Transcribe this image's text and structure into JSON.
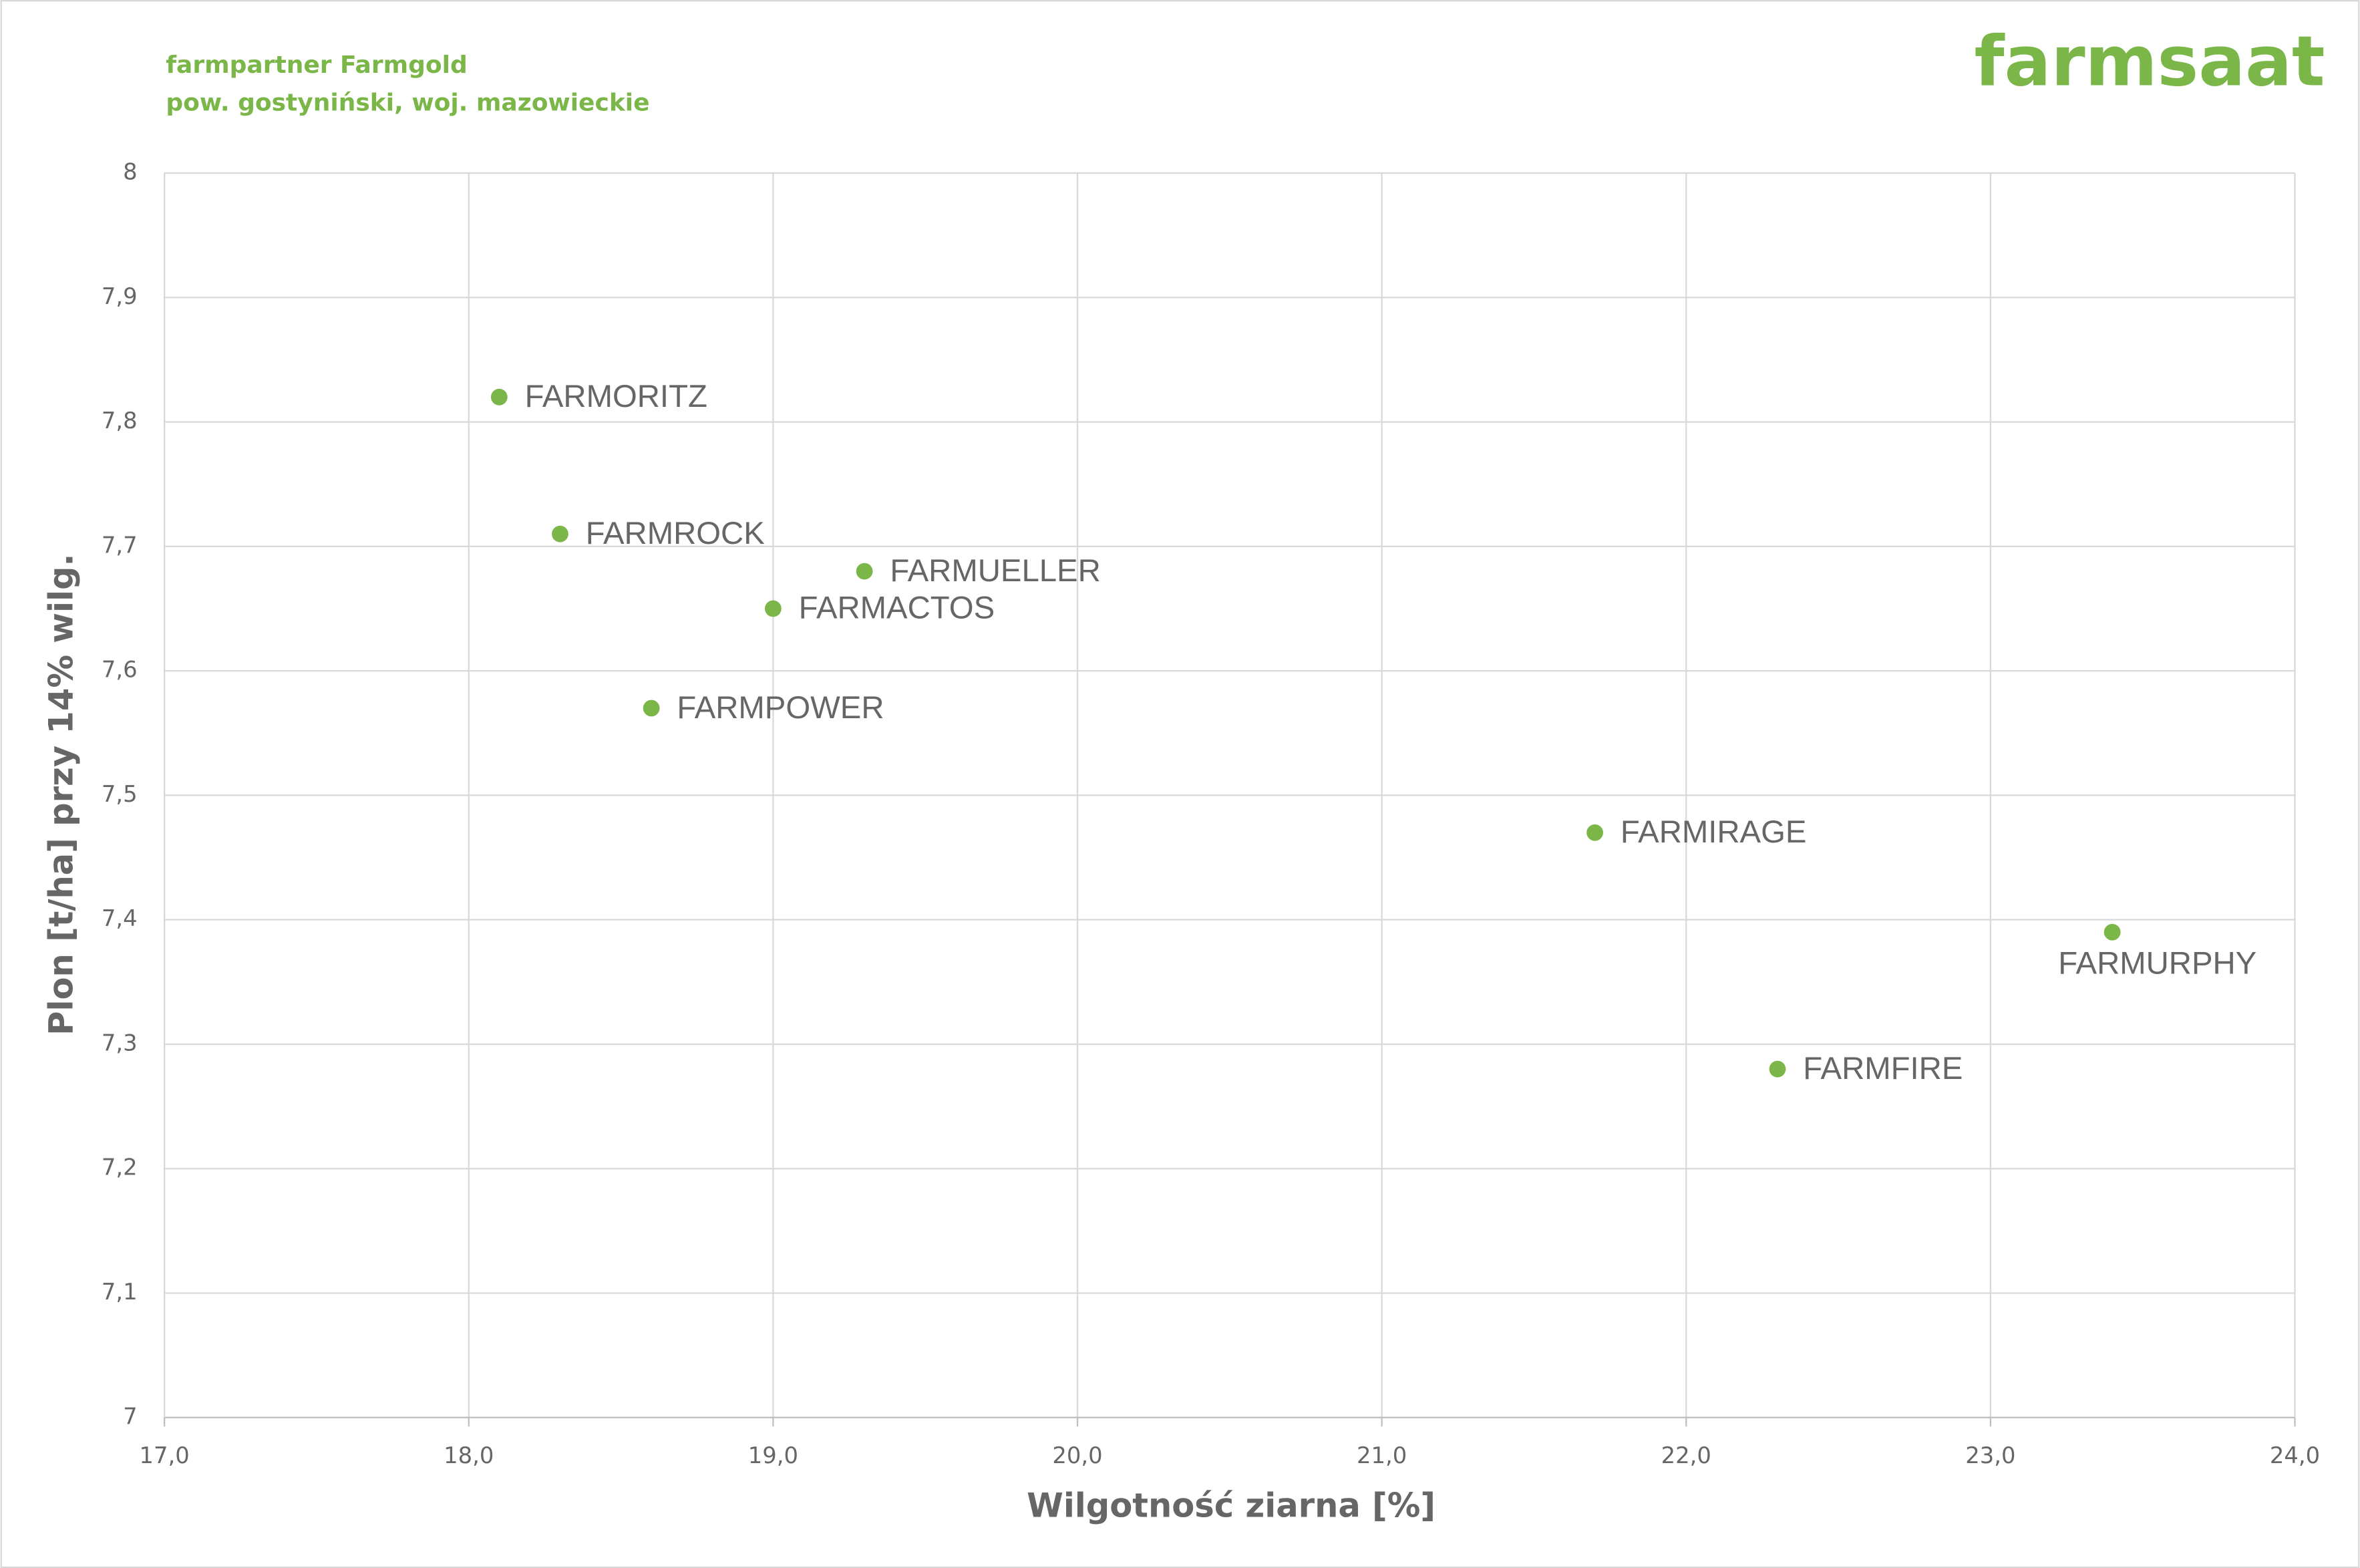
{
  "chart_data": {
    "type": "scatter",
    "title": "farmpartner Farmgold",
    "subtitle": "pow. gostyniński, woj. mazowieckie",
    "brand": "farmsaat",
    "xlabel": "Wilgotność ziarna [%]",
    "ylabel": "Plon [t/ha] przy 14% wilg.",
    "labels": [
      "FARMORITZ",
      "FARMROCK",
      "FARMUELLER",
      "FARMACTOS",
      "FARMPOWER",
      "FARMIRAGE",
      "FARMURPHY",
      "FARMFIRE"
    ],
    "x": [
      18.1,
      18.3,
      19.3,
      19.0,
      18.6,
      21.7,
      23.4,
      22.3
    ],
    "values": [
      7.82,
      7.71,
      7.68,
      7.65,
      7.57,
      7.47,
      7.39,
      7.28
    ],
    "color": "#7ab648",
    "xlim": [
      17,
      24
    ],
    "xticks": [
      {
        "value": 17,
        "label": "17,0"
      },
      {
        "value": 18,
        "label": "18,0"
      },
      {
        "value": 19,
        "label": "19,0"
      },
      {
        "value": 20,
        "label": "20,0"
      },
      {
        "value": 21,
        "label": "21,0"
      },
      {
        "value": 22,
        "label": "22,0"
      },
      {
        "value": 23,
        "label": "23,0"
      },
      {
        "value": 24,
        "label": "24,0"
      }
    ],
    "ylim": [
      7,
      8
    ],
    "yticks": [
      7,
      {
        "value": 7.1,
        "label": "7,1"
      },
      {
        "value": 7.2,
        "label": "7,2"
      },
      {
        "value": 7.3,
        "label": "7,3"
      },
      {
        "value": 7.4,
        "label": "7,4"
      },
      {
        "value": 7.5,
        "label": "7,5"
      },
      {
        "value": 7.6,
        "label": "7,6"
      },
      {
        "value": 7.7,
        "label": "7,7"
      },
      {
        "value": 7.8,
        "label": "7,8"
      },
      {
        "value": 7.9,
        "label": "7,9"
      },
      8
    ],
    "grid": true
  }
}
